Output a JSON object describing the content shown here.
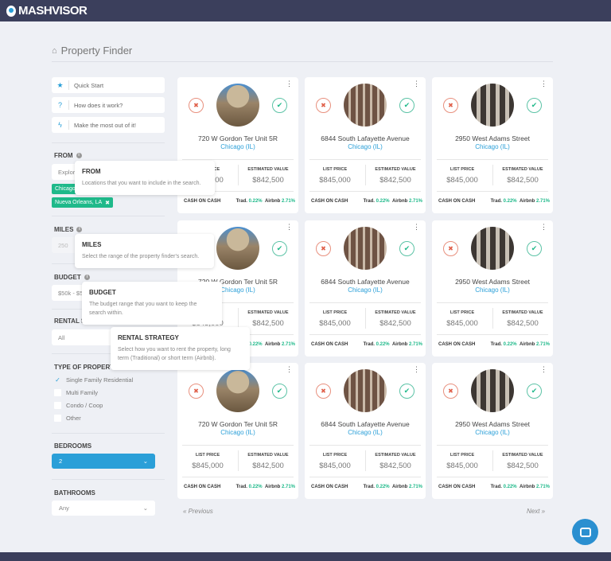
{
  "brand": {
    "name": "MASHVISOR"
  },
  "page_title": "Property Finder",
  "help_links": [
    {
      "icon": "star-icon",
      "glyph": "★",
      "label": "Quick Start"
    },
    {
      "icon": "question-icon",
      "glyph": "?",
      "label": "How does it work?"
    },
    {
      "icon": "bolt-icon",
      "glyph": "ϟ",
      "label": "Make the most out of it!"
    }
  ],
  "filters": {
    "from": {
      "label": "FROM",
      "placeholder": "Explore",
      "tags": [
        "Chicago, IL",
        "Nueva Orleans, LA"
      ]
    },
    "miles": {
      "label": "MILES",
      "value": "250"
    },
    "budget": {
      "label": "BUDGET",
      "value": "$50k - $5"
    },
    "rental_strategy": {
      "label": "RENTAL STRATEGY",
      "value": "All"
    },
    "property_type": {
      "label": "TYPE OF PROPERTY",
      "options": [
        {
          "label": "Single Family Residential",
          "checked": true
        },
        {
          "label": "Multi Family",
          "checked": false
        },
        {
          "label": "Condo / Coop",
          "checked": false
        },
        {
          "label": "Other",
          "checked": false
        }
      ]
    },
    "bedrooms": {
      "label": "BEDROOMS",
      "value": "2"
    },
    "bathrooms": {
      "label": "BATHROOMS",
      "value": "Any"
    }
  },
  "tooltips": {
    "from": {
      "title": "FROM",
      "text": "Locations that you want to include in the search."
    },
    "miles": {
      "title": "MILES",
      "text": "Select the range of the property finder's search."
    },
    "budget": {
      "title": "BUDGET",
      "text": "The budget range that you want to keep the search within."
    },
    "rental_strategy": {
      "title": "RENTAL STRATEGY",
      "text": "Select how you want to rent the property, long term (Traditional) or short term (Airbnb)."
    }
  },
  "card_labels": {
    "list_price": "LIST PRICE",
    "estimated_value": "ESTIMATED VALUE",
    "cash_on_cash": "CASH ON CASH",
    "trad": "Trad.",
    "airbnb": "Airbnb"
  },
  "properties": [
    {
      "address": "720 W Gordon Ter Unit 5R",
      "city": "Chicago (IL)",
      "list_price": "$845,000",
      "estimated_value": "$842,500",
      "trad": "0.22%",
      "airbnb": "2.71%",
      "photo": "house"
    },
    {
      "address": "6844 South Lafayette Avenue",
      "city": "Chicago (IL)",
      "list_price": "$845,000",
      "estimated_value": "$842,500",
      "trad": "0.22%",
      "airbnb": "2.71%",
      "photo": "brick"
    },
    {
      "address": "2950 West Adams Street",
      "city": "Chicago (IL)",
      "list_price": "$845,000",
      "estimated_value": "$842,500",
      "trad": "0.22%",
      "airbnb": "2.71%",
      "photo": "modern"
    },
    {
      "address": "720 W Gordon Ter Unit 5R",
      "city": "Chicago (IL)",
      "list_price": "$845,000",
      "estimated_value": "$842,500",
      "trad": "0.22%",
      "airbnb": "2.71%",
      "photo": "house"
    },
    {
      "address": "6844 South Lafayette Avenue",
      "city": "Chicago (IL)",
      "list_price": "$845,000",
      "estimated_value": "$842,500",
      "trad": "0.22%",
      "airbnb": "2.71%",
      "photo": "brick"
    },
    {
      "address": "2950 West Adams Street",
      "city": "Chicago (IL)",
      "list_price": "$845,000",
      "estimated_value": "$842,500",
      "trad": "0.22%",
      "airbnb": "2.71%",
      "photo": "modern"
    },
    {
      "address": "720 W Gordon Ter Unit 5R",
      "city": "Chicago (IL)",
      "list_price": "$845,000",
      "estimated_value": "$842,500",
      "trad": "0.22%",
      "airbnb": "2.71%",
      "photo": "house"
    },
    {
      "address": "6844 South Lafayette Avenue",
      "city": "Chicago (IL)",
      "list_price": "$845,000",
      "estimated_value": "$842,500",
      "trad": "0.22%",
      "airbnb": "2.71%",
      "photo": "brick"
    },
    {
      "address": "2950 West Adams Street",
      "city": "Chicago (IL)",
      "list_price": "$845,000",
      "estimated_value": "$842,500",
      "trad": "0.22%",
      "airbnb": "2.71%",
      "photo": "modern"
    }
  ],
  "pagination": {
    "previous": "« Previous",
    "next": "Next »"
  },
  "colors": {
    "header": "#3b3f5c",
    "accent": "#2a9fd8",
    "green": "#1fb98a",
    "red": "#e0604a"
  }
}
